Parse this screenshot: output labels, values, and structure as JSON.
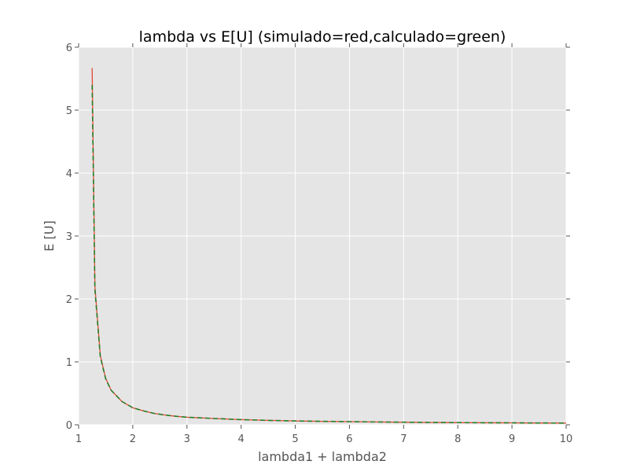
{
  "chart_data": {
    "type": "line",
    "title": "lambda vs E[U] (simulado=red,calculado=green)",
    "xlabel": "lambda1 + lambda2",
    "ylabel": "E [U]",
    "xlim": [
      1,
      10
    ],
    "ylim": [
      0,
      6
    ],
    "xticks": [
      1,
      2,
      3,
      4,
      5,
      6,
      7,
      8,
      9,
      10
    ],
    "yticks": [
      0,
      1,
      2,
      3,
      4,
      5,
      6
    ],
    "grid": true,
    "colors": {
      "background": "#e5e5e5",
      "grid": "#ffffff",
      "simulado": "#e24a33",
      "calculado": "#2a7d2a"
    },
    "series": [
      {
        "name": "simulado",
        "style": "solid",
        "x": [
          1.25,
          1.3,
          1.4,
          1.5,
          1.6,
          1.8,
          2.0,
          2.2,
          2.4,
          2.6,
          2.8,
          3.0,
          3.5,
          4.0,
          4.5,
          5.0,
          5.5,
          6.0,
          6.5,
          7.0,
          7.5,
          8.0,
          8.5,
          9.0,
          9.5,
          10.0
        ],
        "y": [
          5.67,
          2.2,
          1.1,
          0.74,
          0.55,
          0.37,
          0.27,
          0.22,
          0.18,
          0.155,
          0.135,
          0.12,
          0.1,
          0.082,
          0.07,
          0.061,
          0.055,
          0.05,
          0.045,
          0.041,
          0.038,
          0.035,
          0.033,
          0.031,
          0.029,
          0.027
        ]
      },
      {
        "name": "calculado",
        "style": "dashed",
        "x": [
          1.25,
          1.3,
          1.4,
          1.5,
          1.6,
          1.8,
          2.0,
          2.2,
          2.4,
          2.6,
          2.8,
          3.0,
          3.5,
          4.0,
          4.5,
          5.0,
          5.5,
          6.0,
          6.5,
          7.0,
          7.5,
          8.0,
          8.5,
          9.0,
          9.5,
          10.0
        ],
        "y": [
          5.4,
          2.15,
          1.08,
          0.73,
          0.55,
          0.37,
          0.27,
          0.22,
          0.18,
          0.155,
          0.135,
          0.12,
          0.1,
          0.082,
          0.07,
          0.061,
          0.055,
          0.05,
          0.045,
          0.041,
          0.038,
          0.035,
          0.033,
          0.031,
          0.029,
          0.027
        ]
      }
    ]
  }
}
